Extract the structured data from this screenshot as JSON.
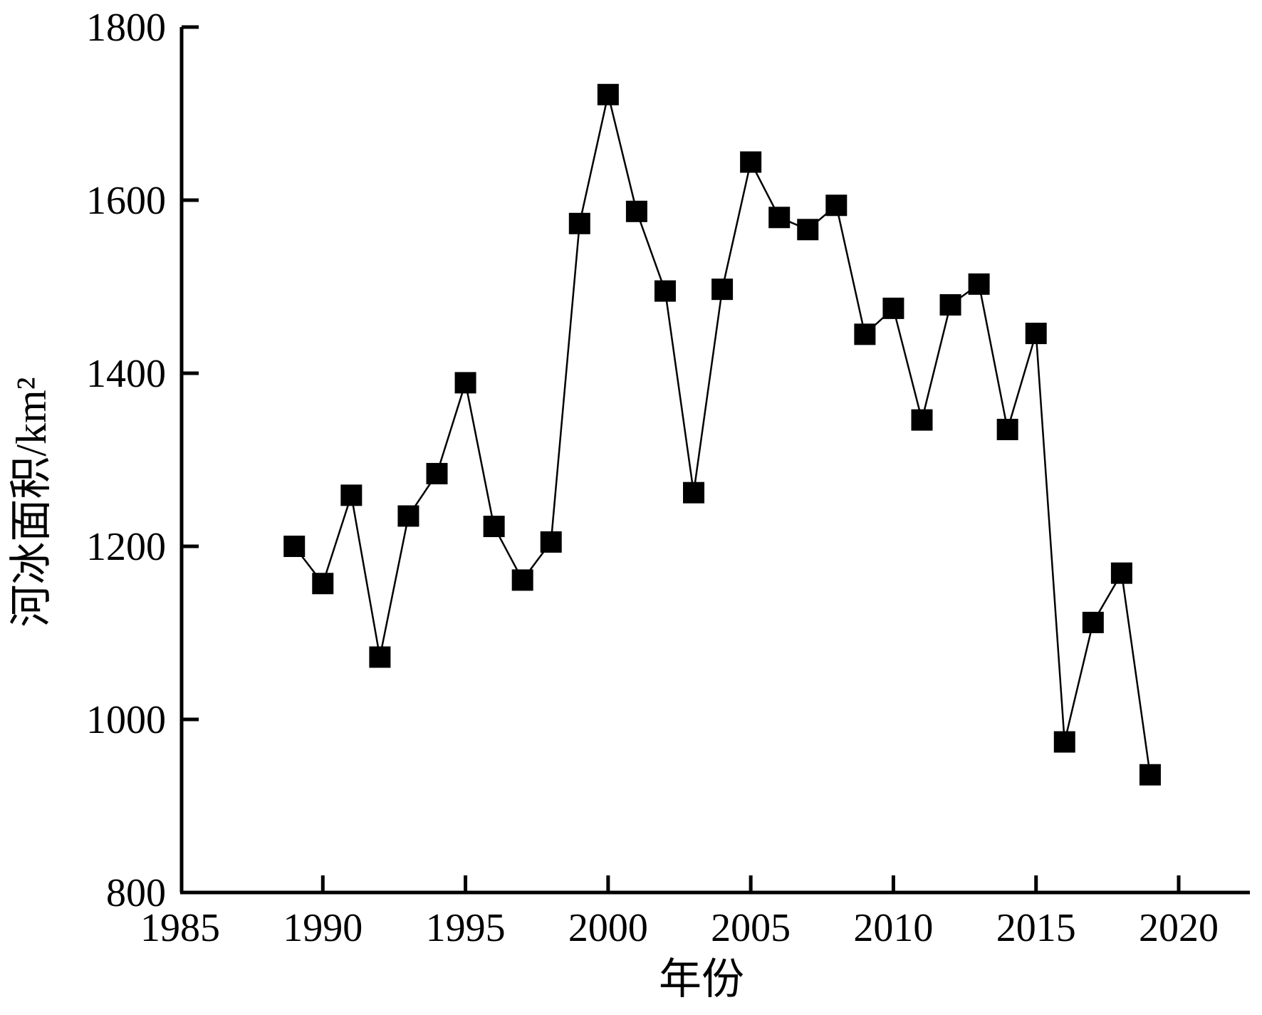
{
  "chart_data": {
    "type": "line",
    "title": "",
    "xlabel": "年份",
    "ylabel": "河冰面积/km²",
    "xlim": [
      1985,
      2022
    ],
    "ylim": [
      800,
      1800
    ],
    "xticks": [
      1985,
      1990,
      1995,
      2000,
      2005,
      2010,
      2015,
      2020
    ],
    "yticks": [
      800,
      1000,
      1200,
      1400,
      1600,
      1800
    ],
    "grid": false,
    "legend": "none",
    "marker": "square",
    "colors": {
      "line": "#000000",
      "marker": "#000000"
    },
    "series": [
      {
        "x": [
          1989,
          1990,
          1991,
          1992,
          1993,
          1994,
          1995,
          1996,
          1997,
          1998,
          1999,
          2000,
          2001,
          2002,
          2003,
          2004,
          2005,
          2006,
          2007,
          2008,
          2009,
          2010,
          2011,
          2012,
          2013,
          2014,
          2015,
          2016,
          2017,
          2018,
          2019
        ],
        "y": [
          1200,
          1157,
          1259,
          1072,
          1235,
          1284,
          1389,
          1223,
          1161,
          1205,
          1573,
          1722,
          1587,
          1495,
          1262,
          1497,
          1644,
          1580,
          1566,
          1594,
          1445,
          1475,
          1346,
          1479,
          1503,
          1335,
          1446,
          974,
          1112,
          1169,
          936
        ]
      }
    ]
  }
}
